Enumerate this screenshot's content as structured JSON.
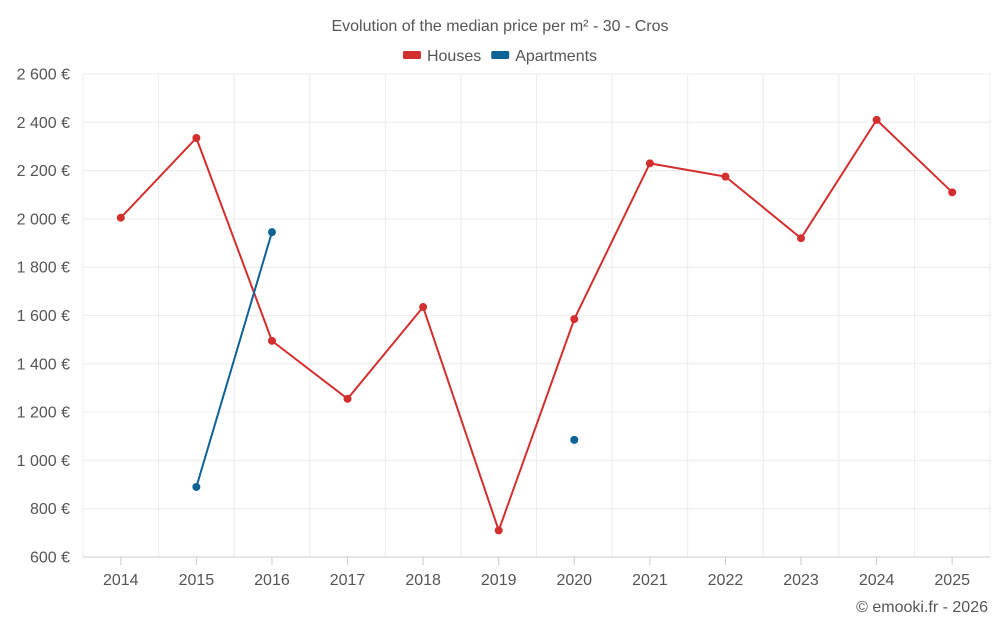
{
  "chart_data": {
    "type": "line",
    "title": "Evolution of the median price per m² - 30 - Cros",
    "categories": [
      "2014",
      "2015",
      "2016",
      "2017",
      "2018",
      "2019",
      "2020",
      "2021",
      "2022",
      "2023",
      "2024",
      "2025"
    ],
    "ylim": [
      600,
      2600
    ],
    "y_ticks": [
      600,
      800,
      1000,
      1200,
      1400,
      1600,
      1800,
      2000,
      2200,
      2400,
      2600
    ],
    "y_tick_labels": [
      "600 €",
      "800 €",
      "1 000 €",
      "1 200 €",
      "1 400 €",
      "1 600 €",
      "1 800 €",
      "2 000 €",
      "2 200 €",
      "2 400 €",
      "2 600 €"
    ],
    "grid": true,
    "legend_position": "top-center",
    "series": [
      {
        "name": "Houses",
        "color": "#d32f2f",
        "values": [
          2005,
          2335,
          1495,
          1255,
          1635,
          710,
          1585,
          2230,
          2175,
          1920,
          2410,
          2110
        ]
      },
      {
        "name": "Apartments",
        "color": "#0d6396",
        "values": [
          null,
          890,
          1945,
          null,
          null,
          null,
          1085,
          null,
          null,
          null,
          null,
          null
        ]
      }
    ]
  },
  "credit": "© emooki.fr - 2026"
}
